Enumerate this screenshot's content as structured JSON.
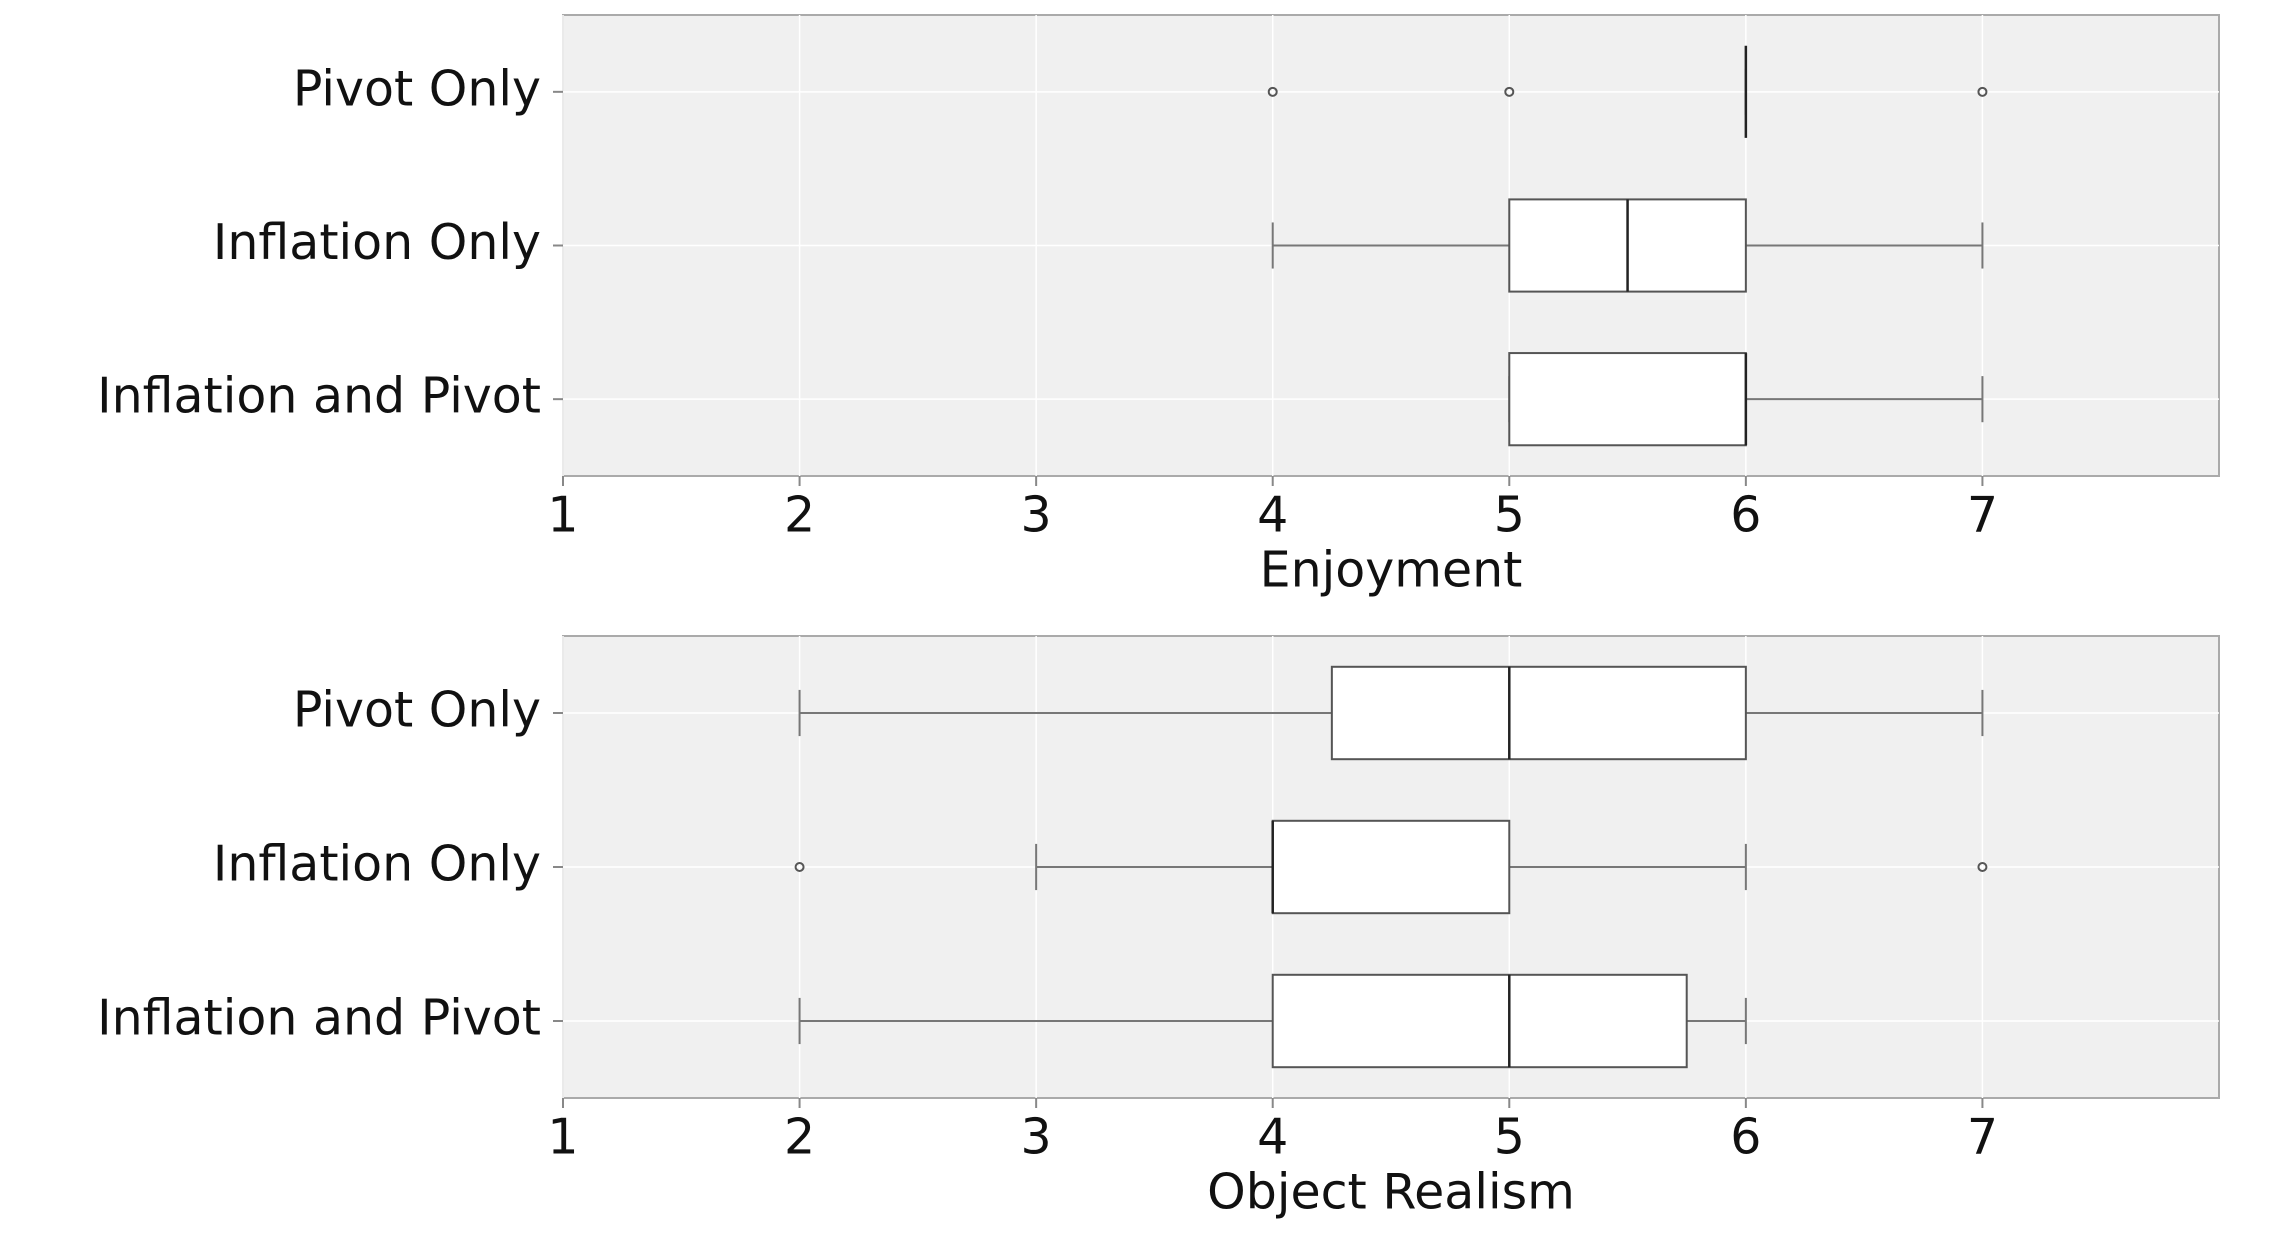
{
  "chart_data": [
    {
      "type": "box",
      "xlabel": "Enjoyment",
      "categories": [
        "Pivot Only",
        "Inflation Only",
        "Inflation and Pivot"
      ],
      "boxes": [
        {
          "whislo": 6,
          "q1": 6,
          "med": 6,
          "q3": 6,
          "whishi": 6,
          "fliers": [
            4,
            5,
            7
          ]
        },
        {
          "whislo": 4,
          "q1": 5,
          "med": 5.5,
          "q3": 6,
          "whishi": 7
        },
        {
          "whislo": 5,
          "q1": 5,
          "med": 6,
          "q3": 6,
          "whishi": 7
        }
      ],
      "xlim": [
        1,
        8
      ],
      "xticks": [
        1,
        2,
        3,
        4,
        5,
        6,
        7
      ],
      "grid": true
    },
    {
      "type": "box",
      "xlabel": "Object Realism",
      "categories": [
        "Pivot Only",
        "Inflation Only",
        "Inflation and Pivot"
      ],
      "boxes": [
        {
          "whislo": 2,
          "q1": 4.25,
          "med": 5,
          "q3": 6,
          "whishi": 7
        },
        {
          "whislo": 3,
          "q1": 4,
          "med": 4,
          "q3": 5,
          "whishi": 6,
          "fliers": [
            2,
            7
          ]
        },
        {
          "whislo": 2,
          "q1": 4,
          "med": 5,
          "q3": 5.75,
          "whishi": 6
        }
      ],
      "xlim": [
        1,
        8
      ],
      "xticks": [
        1,
        2,
        3,
        4,
        5,
        6,
        7
      ],
      "grid": true
    }
  ]
}
